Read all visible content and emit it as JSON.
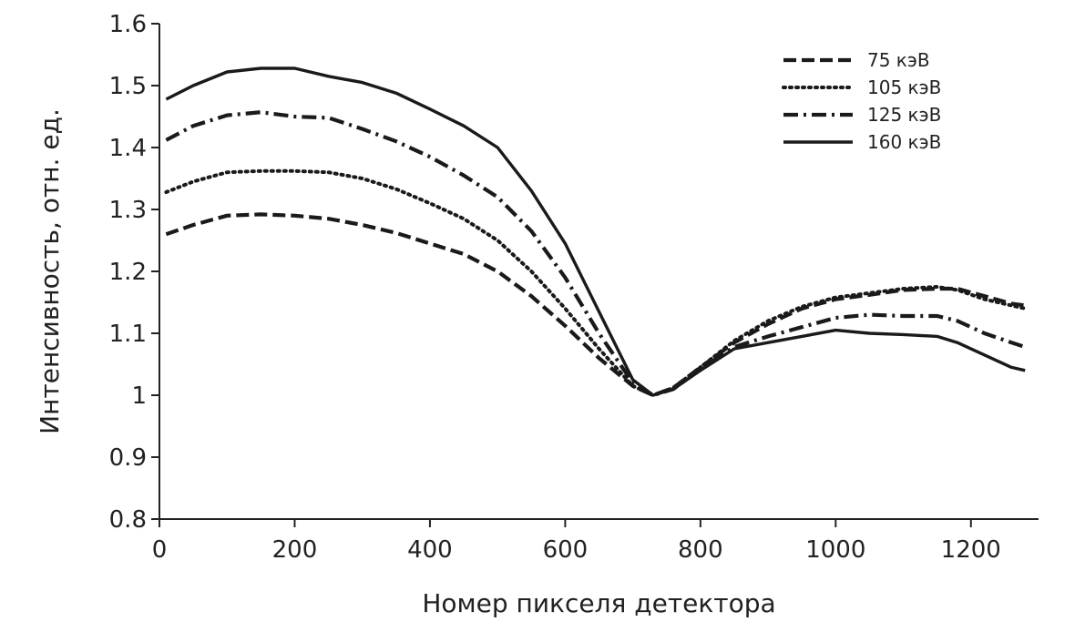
{
  "chart_data": {
    "type": "line",
    "title": "",
    "xlabel": "Номер пикселя детектора",
    "ylabel": "Интенсивность, отн. ед.",
    "xlim": [
      0,
      1300
    ],
    "ylim": [
      0.8,
      1.6
    ],
    "xticks": [
      0,
      200,
      400,
      600,
      800,
      1000,
      1200
    ],
    "yticks": [
      0.8,
      0.9,
      1,
      1.1,
      1.2,
      1.3,
      1.4,
      1.5,
      1.6
    ],
    "xtick_labels": [
      "0",
      "200",
      "400",
      "600",
      "800",
      "1000",
      "1200"
    ],
    "ytick_labels": [
      "0.8",
      "0.9",
      "1",
      "1.1",
      "1.2",
      "1.3",
      "1.4",
      "1.5",
      "1.6"
    ],
    "grid": false,
    "legend": {
      "placement": "top-right"
    },
    "series": [
      {
        "name": "75 кэВ",
        "dash": "dashed",
        "x": [
          10,
          50,
          100,
          150,
          200,
          250,
          300,
          350,
          400,
          450,
          500,
          550,
          600,
          650,
          700,
          730,
          760,
          800,
          850,
          900,
          950,
          1000,
          1050,
          1100,
          1150,
          1180,
          1220,
          1260,
          1280
        ],
        "y": [
          1.26,
          1.275,
          1.29,
          1.292,
          1.29,
          1.285,
          1.275,
          1.262,
          1.245,
          1.228,
          1.2,
          1.16,
          1.112,
          1.06,
          1.015,
          1.0,
          1.012,
          1.045,
          1.085,
          1.115,
          1.14,
          1.155,
          1.162,
          1.17,
          1.172,
          1.172,
          1.16,
          1.148,
          1.145
        ]
      },
      {
        "name": "105 кэВ",
        "dash": "dotted",
        "x": [
          10,
          50,
          100,
          150,
          200,
          250,
          300,
          350,
          400,
          450,
          500,
          550,
          600,
          650,
          700,
          730,
          760,
          800,
          850,
          900,
          950,
          1000,
          1050,
          1100,
          1150,
          1180,
          1220,
          1260,
          1280
        ],
        "y": [
          1.328,
          1.345,
          1.36,
          1.362,
          1.362,
          1.36,
          1.35,
          1.333,
          1.31,
          1.285,
          1.25,
          1.2,
          1.14,
          1.075,
          1.015,
          1.0,
          1.012,
          1.045,
          1.088,
          1.12,
          1.143,
          1.158,
          1.165,
          1.172,
          1.175,
          1.17,
          1.155,
          1.145,
          1.14
        ]
      },
      {
        "name": "125 кэВ",
        "dash": "dashdot",
        "x": [
          10,
          50,
          100,
          150,
          200,
          250,
          300,
          350,
          400,
          450,
          500,
          550,
          600,
          650,
          700,
          730,
          760,
          800,
          850,
          900,
          950,
          1000,
          1050,
          1100,
          1150,
          1180,
          1220,
          1260,
          1280
        ],
        "y": [
          1.412,
          1.435,
          1.452,
          1.457,
          1.45,
          1.448,
          1.43,
          1.41,
          1.385,
          1.355,
          1.32,
          1.265,
          1.19,
          1.1,
          1.02,
          1.0,
          1.01,
          1.042,
          1.078,
          1.095,
          1.11,
          1.125,
          1.13,
          1.128,
          1.128,
          1.12,
          1.1,
          1.085,
          1.078
        ]
      },
      {
        "name": "160 кэВ",
        "dash": "solid",
        "x": [
          10,
          50,
          100,
          150,
          200,
          250,
          300,
          350,
          400,
          450,
          500,
          550,
          600,
          650,
          700,
          730,
          760,
          800,
          850,
          900,
          950,
          1000,
          1050,
          1100,
          1150,
          1180,
          1220,
          1260,
          1280
        ],
        "y": [
          1.478,
          1.5,
          1.522,
          1.528,
          1.528,
          1.515,
          1.505,
          1.488,
          1.462,
          1.435,
          1.4,
          1.33,
          1.245,
          1.135,
          1.025,
          1.0,
          1.01,
          1.04,
          1.075,
          1.085,
          1.095,
          1.105,
          1.1,
          1.098,
          1.095,
          1.085,
          1.065,
          1.045,
          1.04
        ]
      }
    ]
  }
}
